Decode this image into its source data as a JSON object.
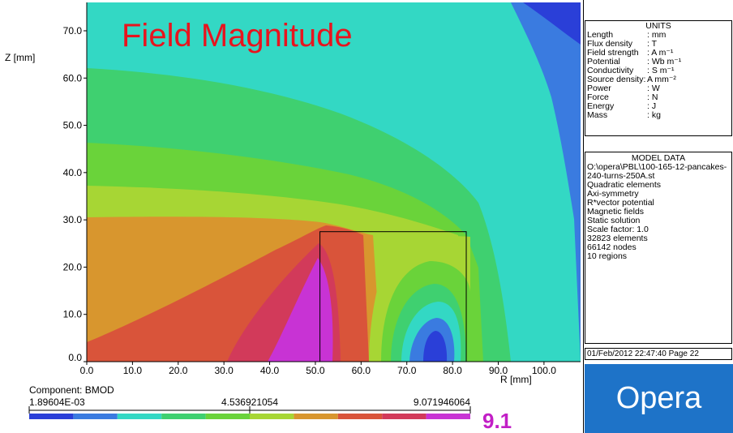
{
  "chart_data": {
    "type": "heatmap",
    "title": "Field Magnitude",
    "xlabel": "R [mm]",
    "ylabel": "Z [mm]",
    "xlim": [
      0.0,
      108.0
    ],
    "ylim": [
      0.0,
      76.0
    ],
    "x_ticks": [
      "0.0",
      "10.0",
      "20.0",
      "30.0",
      "40.0",
      "50.0",
      "60.0",
      "70.0",
      "80.0",
      "90.0",
      "100.0"
    ],
    "x_tick_values": [
      0,
      10,
      20,
      30,
      40,
      50,
      60,
      70,
      80,
      90,
      100
    ],
    "y_ticks": [
      "0.0",
      "10.0",
      "20.0",
      "30.0",
      "40.0",
      "50.0",
      "60.0",
      "70.0"
    ],
    "y_tick_values": [
      0,
      10,
      20,
      30,
      40,
      50,
      60,
      70
    ],
    "coil": {
      "r_min": 51.0,
      "r_max": 83.0,
      "z_min": 0.0,
      "z_max": 27.5
    },
    "component": "Component: BMOD",
    "scale_labels": [
      "1.89604E-03",
      "4.536921054",
      "9.071946064"
    ],
    "scale_values": [
      0.00189604,
      4.536921054,
      9.071946064
    ],
    "max_badge": "9.1",
    "levels": 10,
    "grid": false
  },
  "colors": {
    "palette": [
      "#2a3fd8",
      "#3a7be0",
      "#33d8c4",
      "#3fd070",
      "#6ad33a",
      "#a7d634",
      "#d8962e",
      "#d9543a",
      "#d23a5a",
      "#c833d4"
    ],
    "title": "#e8141e",
    "badge": "#c21fc6",
    "logo_bg": "#1e73c8"
  },
  "units": {
    "heading": "UNITS",
    "rows": [
      {
        "name": "Length",
        "value": ": mm"
      },
      {
        "name": "Flux density",
        "value": ": T"
      },
      {
        "name": "Field strength",
        "value": ": A m⁻¹"
      },
      {
        "name": "Potential",
        "value": ": Wb m⁻¹"
      },
      {
        "name": "Conductivity",
        "value": ": S m⁻¹"
      },
      {
        "name": "Source density:",
        "value": "A mm⁻²"
      },
      {
        "name": "Power",
        "value": ": W"
      },
      {
        "name": "Force",
        "value": ": N"
      },
      {
        "name": "Energy",
        "value": ": J"
      },
      {
        "name": "Mass",
        "value": ": kg"
      }
    ]
  },
  "model": {
    "heading": "MODEL DATA",
    "file": "O:\\opera\\PBL\\100-165-12-pancakes-240-turns-250A.st",
    "lines": [
      "Quadratic elements",
      "Axi-symmetry",
      "R*vector potential",
      "Magnetic fields",
      "Static solution",
      "Scale factor: 1.0",
      "32823 elements",
      "66142 nodes",
      "10 regions"
    ]
  },
  "footer": {
    "date": "01/Feb/2012 22:47:40 Page 22"
  },
  "logo": {
    "text": "Opera"
  }
}
